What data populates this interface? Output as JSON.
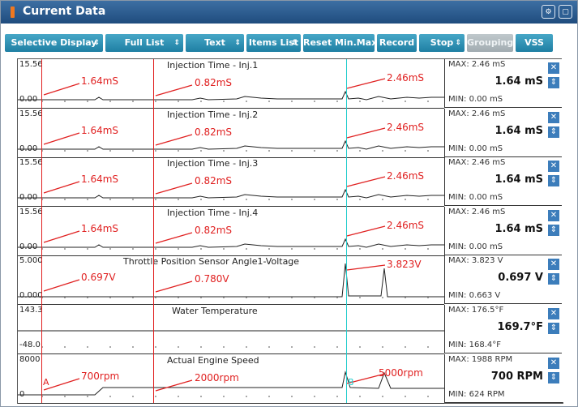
{
  "window": {
    "title": "Current Data"
  },
  "toolbar": {
    "selective_display": "Selective Display",
    "full_list": "Full List",
    "text": "Text",
    "items_list": "Items List",
    "reset_minmax": "Reset Min.Max",
    "record": "Record",
    "stop": "Stop",
    "grouping": "Grouping",
    "vss": "VSS"
  },
  "charts": [
    {
      "title": "Injection Time - Inj.1",
      "ymax": "15.56",
      "ymin": "0.00",
      "max": "MAX:  2.46 mS",
      "current": "1.64 mS",
      "min": "MIN:  0.00 mS",
      "a1": "1.64mS",
      "a2": "0.82mS",
      "a3": "2.46mS"
    },
    {
      "title": "Injection Time - Inj.2",
      "ymax": "15.56",
      "ymin": "0.00",
      "max": "MAX:  2.46 mS",
      "current": "1.64 mS",
      "min": "MIN:  0.00 mS",
      "a1": "1.64mS",
      "a2": "0.82mS",
      "a3": "2.46mS"
    },
    {
      "title": "Injection Time - Inj.3",
      "ymax": "15.56",
      "ymin": "0.00",
      "max": "MAX:  2.46 mS",
      "current": "1.64 mS",
      "min": "MIN:  0.00 mS",
      "a1": "1.64mS",
      "a2": "0.82mS",
      "a3": "2.46mS"
    },
    {
      "title": "Injection Time - Inj.4",
      "ymax": "15.56",
      "ymin": "0.00",
      "max": "MAX:  2.46 mS",
      "current": "1.64 mS",
      "min": "MIN:  0.00 mS",
      "a1": "1.64mS",
      "a2": "0.82mS",
      "a3": "2.46mS"
    },
    {
      "title": "Throttle Position Sensor Angle1-Voltage",
      "ymax": "5.000",
      "ymin": "0.000",
      "max": "MAX: 3.823 V",
      "current": "0.697 V",
      "min": "MIN: 0.663 V",
      "a1": "0.697V",
      "a2": "0.780V",
      "a3": "3.823V"
    },
    {
      "title": "Water Temperature",
      "ymax": "143.3",
      "ymin": "-48.0",
      "max": "MAX:  176.5°F",
      "current": "169.7°F",
      "min": "MIN:   168.4°F",
      "a1": "",
      "a2": "",
      "a3": ""
    },
    {
      "title": "Actual Engine Speed",
      "ymax": "8000",
      "ymin": "0",
      "max": "MAX:   1988 RPM",
      "current": "700 RPM",
      "min": "MIN:    624 RPM",
      "a1": "700rpm",
      "a2": "2000rpm",
      "a3": "5000rpm"
    }
  ],
  "markers": {
    "cursor_a": "A",
    "cursor_b": "B"
  },
  "colors": {
    "accent": "#2a8fb3",
    "annotation": "#e02020",
    "cursor_cyan": "#22cccc"
  }
}
